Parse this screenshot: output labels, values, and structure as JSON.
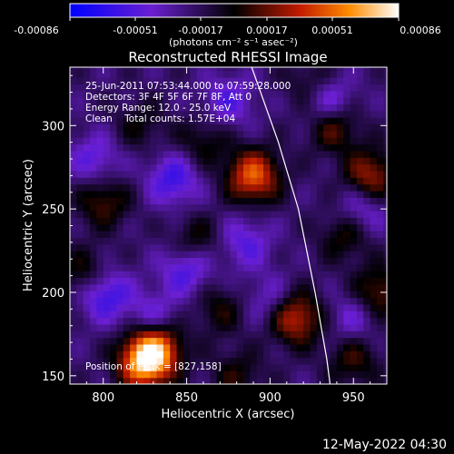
{
  "colorbar": {
    "ticks": [
      "-0.00086",
      "-0.00051",
      "-0.00017",
      "0.00017",
      "0.00051",
      "0.00086"
    ],
    "unit": "(photons cm⁻² s⁻¹ asec⁻²)",
    "range": [
      -0.00086,
      0.00086
    ],
    "colors": [
      "#0000ff",
      "#6a1fd0",
      "#000000",
      "#c21b00",
      "#ff8c00",
      "#ffffff"
    ]
  },
  "chart_data": {
    "type": "heatmap",
    "title": "Reconstructed RHESSI Image",
    "xlabel": "Heliocentric X (arcsec)",
    "ylabel": "Heliocentric Y (arcsec)",
    "xlim": [
      780,
      970
    ],
    "ylim": [
      145,
      335
    ],
    "xticks": [
      800,
      850,
      900,
      950
    ],
    "yticks": [
      150,
      200,
      250,
      300
    ],
    "annotations": [
      "25-Jun-2011 07:53:44.000 to 07:59:28.000",
      "Detectors: 3F 4F 5F 6F 7F 8F, Att 0",
      "Energy Range: 12.0 - 25.0 keV",
      "Clean    Total counts: 1.57E+04"
    ],
    "position_of_peak": "Position of Peak = [827,158]",
    "peak": [
      827,
      158
    ],
    "limb_curve": [
      [
        889,
        335
      ],
      [
        905,
        290
      ],
      [
        917,
        250
      ],
      [
        927,
        200
      ],
      [
        934,
        160
      ],
      [
        936,
        145
      ]
    ],
    "blobs": [
      {
        "x": 825,
        "y": 158,
        "value": 0.00086
      },
      {
        "x": 832,
        "y": 168,
        "value": 0.0006
      },
      {
        "x": 890,
        "y": 270,
        "value": 0.0007
      },
      {
        "x": 915,
        "y": 185,
        "value": 0.0006
      },
      {
        "x": 938,
        "y": 300,
        "value": 0.0004
      },
      {
        "x": 960,
        "y": 270,
        "value": 0.0005
      },
      {
        "x": 965,
        "y": 200,
        "value": 0.0004
      },
      {
        "x": 790,
        "y": 210,
        "value": 0.00035
      },
      {
        "x": 800,
        "y": 255,
        "value": 0.00035
      },
      {
        "x": 855,
        "y": 230,
        "value": 0.0003
      },
      {
        "x": 945,
        "y": 235,
        "value": 0.0003
      },
      {
        "x": 860,
        "y": 290,
        "value": 0.00025
      },
      {
        "x": 950,
        "y": 160,
        "value": 0.0003
      },
      {
        "x": 870,
        "y": 190,
        "value": 0.00025
      },
      {
        "x": 925,
        "y": 325,
        "value": 0.00025
      },
      {
        "x": 822,
        "y": 300,
        "value": 0.0002
      },
      {
        "x": 880,
        "y": 150,
        "value": 0.00025
      },
      {
        "x": 842,
        "y": 268,
        "value": -0.0004
      },
      {
        "x": 800,
        "y": 200,
        "value": -0.0005
      },
      {
        "x": 850,
        "y": 215,
        "value": -0.0004
      },
      {
        "x": 935,
        "y": 315,
        "value": -0.0004
      },
      {
        "x": 885,
        "y": 230,
        "value": -0.0003
      },
      {
        "x": 795,
        "y": 280,
        "value": -0.0003
      },
      {
        "x": 875,
        "y": 315,
        "value": -0.0003
      },
      {
        "x": 900,
        "y": 195,
        "value": -0.00025
      },
      {
        "x": 955,
        "y": 250,
        "value": -0.0003
      },
      {
        "x": 950,
        "y": 185,
        "value": -0.00025
      },
      {
        "x": 830,
        "y": 185,
        "value": -0.0003
      }
    ]
  },
  "footer": {
    "timestamp": "12-May-2022 04:30"
  }
}
